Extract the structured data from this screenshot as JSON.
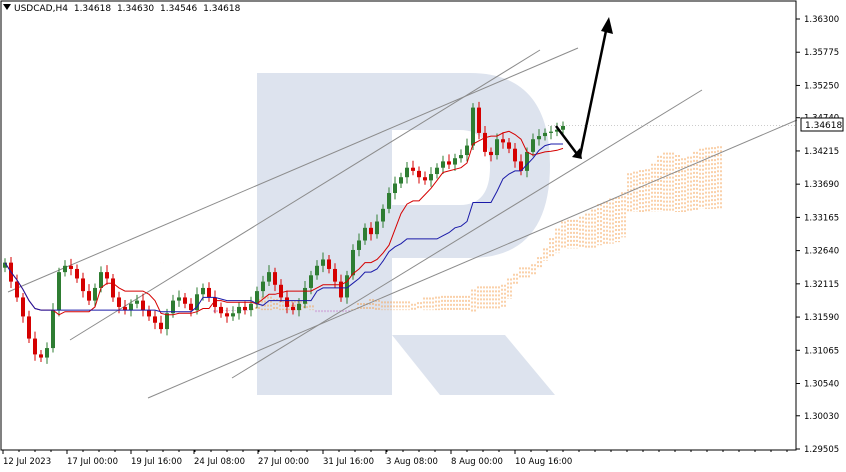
{
  "header": {
    "symbol_timeframe": "USDCAD,H4",
    "open": "1.34618",
    "high": "1.34630",
    "low": "1.34546",
    "close": "1.34618"
  },
  "chart_data": {
    "type": "candlestick",
    "symbol": "USDCAD",
    "timeframe": "H4",
    "ylim": [
      1.295,
      1.365
    ],
    "y_ticks": [
      "1.36300",
      "1.35775",
      "1.35250",
      "1.34740",
      "1.34215",
      "1.33690",
      "1.33165",
      "1.32640",
      "1.32115",
      "1.31590",
      "1.31065",
      "1.30540",
      "1.30030",
      "1.29505"
    ],
    "x_ticks": [
      "12 Jul 2023",
      "17 Jul 00:00",
      "19 Jul 16:00",
      "24 Jul 08:00",
      "27 Jul 00:00",
      "31 Jul 16:00",
      "3 Aug 08:00",
      "8 Aug 00:00",
      "10 Aug 16:00"
    ],
    "current_price": "1.34618",
    "price_tag_text": "1.34618",
    "close_series": [
      1.3245,
      1.3215,
      1.319,
      1.316,
      1.3125,
      1.31,
      1.3095,
      1.311,
      1.317,
      1.323,
      1.324,
      1.3235,
      1.322,
      1.32,
      1.3185,
      1.3205,
      1.323,
      1.322,
      1.319,
      1.3175,
      1.317,
      1.318,
      1.3185,
      1.317,
      1.316,
      1.315,
      1.314,
      1.3165,
      1.3185,
      1.319,
      1.318,
      1.317,
      1.3195,
      1.3205,
      1.319,
      1.3175,
      1.3165,
      1.316,
      1.3165,
      1.3175,
      1.317,
      1.318,
      1.32,
      1.3215,
      1.323,
      1.321,
      1.319,
      1.3175,
      1.317,
      1.318,
      1.3205,
      1.3225,
      1.324,
      1.325,
      1.3235,
      1.3215,
      1.319,
      1.3225,
      1.3265,
      1.328,
      1.33,
      1.329,
      1.331,
      1.333,
      1.3355,
      1.337,
      1.338,
      1.3395,
      1.339,
      1.338,
      1.3375,
      1.3385,
      1.3395,
      1.3405,
      1.34,
      1.341,
      1.3415,
      1.343,
      1.349,
      1.345,
      1.342,
      1.3415,
      1.344,
      1.3435,
      1.3425,
      1.3405,
      1.339,
      1.342,
      1.344,
      1.3445,
      1.345,
      1.3452,
      1.3455,
      1.3461
    ],
    "colors": {
      "bull_candle": "#2e7d32",
      "bear_candle": "#d50000",
      "tenkan_line": "#d50000",
      "kijun_line": "#1a1aa8",
      "cloud_bull": "#f5a356",
      "cloud_bear": "#c98fd0",
      "trend_lines": "#8c8c8c",
      "forecast_arrow": "#000000",
      "watermark": "#dde3ee"
    },
    "indicators": [
      "Ichimoku Kinko Hyo"
    ],
    "trend_lines": 4,
    "forecast": "short dip toward cloud, then rise above 1.3630",
    "grid": false,
    "watermark": "RoboForex logo"
  }
}
